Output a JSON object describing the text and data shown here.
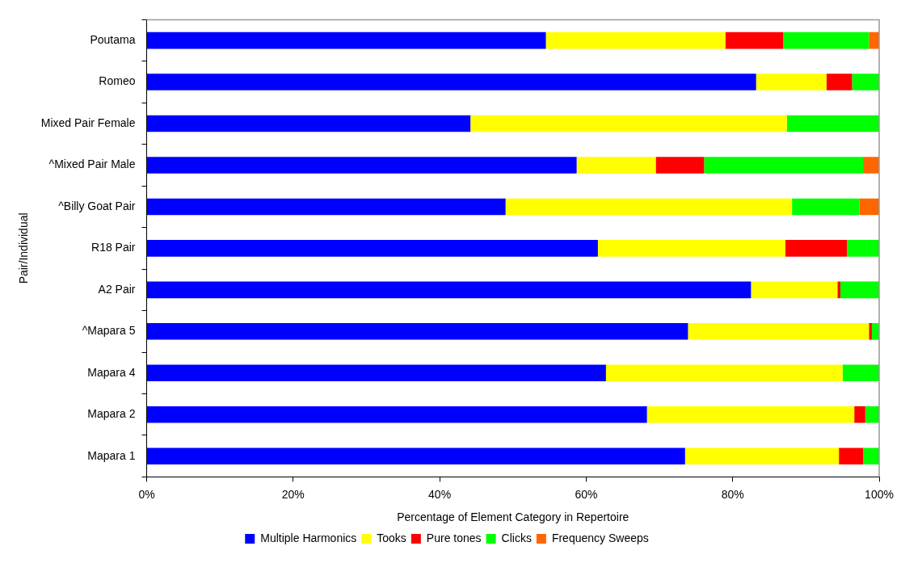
{
  "chart_data": {
    "type": "bar",
    "orientation": "horizontal",
    "stacked": true,
    "xlabel": "Percentage of Element Category in Repertoire",
    "ylabel": "Pair/Individual",
    "categories": [
      "Poutama",
      "Romeo",
      "Mixed Pair Female",
      "^Mixed Pair Male",
      "^Billy Goat Pair",
      "R18 Pair",
      "A2 Pair",
      "^Mapara 5",
      "Mapara 4",
      "Mapara 2",
      "Mapara 1"
    ],
    "series": [
      {
        "name": "Multiple Harmonics",
        "color": "#0000ff",
        "values": [
          54.5,
          83.2,
          44.2,
          58.7,
          49.0,
          61.6,
          82.5,
          73.9,
          62.7,
          68.3,
          73.5
        ]
      },
      {
        "name": "Tooks",
        "color": "#ffff00",
        "values": [
          24.5,
          9.6,
          43.2,
          10.8,
          39.1,
          25.6,
          11.8,
          24.7,
          32.3,
          28.3,
          21.0
        ]
      },
      {
        "name": "Pure tones",
        "color": "#ff0000",
        "values": [
          7.9,
          3.5,
          0,
          6.6,
          0,
          8.4,
          0.4,
          0.4,
          0,
          1.5,
          3.3
        ]
      },
      {
        "name": "Clicks",
        "color": "#00ff00",
        "values": [
          11.7,
          3.7,
          12.6,
          21.7,
          9.2,
          4.4,
          5.3,
          1.0,
          5.0,
          1.9,
          2.2
        ]
      },
      {
        "name": "Frequency Sweeps",
        "color": "#ff6600",
        "values": [
          1.4,
          0,
          0,
          2.2,
          2.7,
          0,
          0,
          0,
          0,
          0,
          0
        ]
      }
    ],
    "xlim": [
      0,
      100
    ],
    "xticks": [
      {
        "value": 0,
        "label": "0%"
      },
      {
        "value": 20,
        "label": "20%"
      },
      {
        "value": 40,
        "label": "40%"
      },
      {
        "value": 60,
        "label": "60%"
      },
      {
        "value": 80,
        "label": "80%"
      },
      {
        "value": 100,
        "label": "100%"
      }
    ],
    "grid": false,
    "legend": "bottom"
  }
}
